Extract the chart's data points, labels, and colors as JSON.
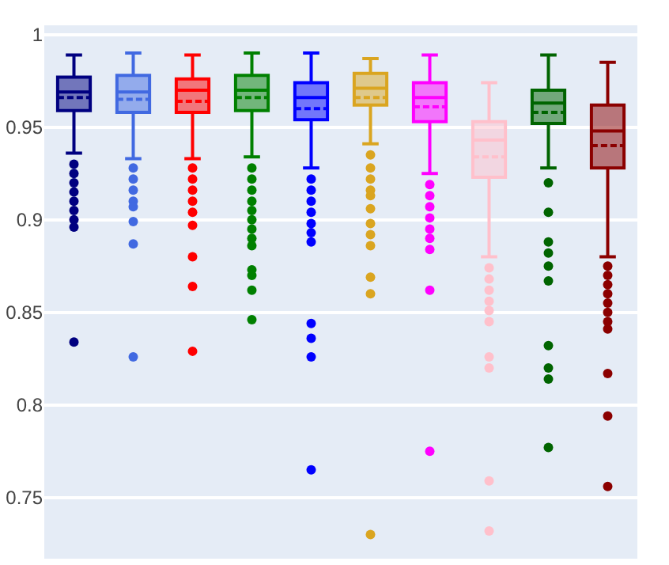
{
  "chart_data": {
    "type": "box",
    "categories": [
      null,
      null,
      null,
      null,
      null,
      null,
      null,
      null,
      null,
      null
    ],
    "colors": [
      "#000080",
      "#4169e1",
      "#ff0000",
      "#008000",
      "#0000ff",
      "#daa520",
      "#ff00ff",
      "#ffc0cb",
      "#006400",
      "#8b0000"
    ],
    "boxes": [
      {
        "low": 0.936,
        "q1": 0.959,
        "median": 0.969,
        "q3": 0.977,
        "high": 0.989,
        "mean": 0.966,
        "outliers": [
          0.93,
          0.925,
          0.92,
          0.915,
          0.91,
          0.905,
          0.9,
          0.896,
          0.834
        ]
      },
      {
        "low": 0.933,
        "q1": 0.958,
        "median": 0.969,
        "q3": 0.978,
        "high": 0.99,
        "mean": 0.965,
        "outliers": [
          0.928,
          0.922,
          0.916,
          0.91,
          0.907,
          0.899,
          0.887,
          0.826
        ]
      },
      {
        "low": 0.933,
        "q1": 0.958,
        "median": 0.97,
        "q3": 0.976,
        "high": 0.989,
        "mean": 0.964,
        "outliers": [
          0.928,
          0.922,
          0.916,
          0.91,
          0.904,
          0.897,
          0.88,
          0.864,
          0.829
        ]
      },
      {
        "low": 0.934,
        "q1": 0.959,
        "median": 0.97,
        "q3": 0.978,
        "high": 0.99,
        "mean": 0.966,
        "outliers": [
          0.928,
          0.922,
          0.916,
          0.91,
          0.905,
          0.9,
          0.895,
          0.89,
          0.886,
          0.873,
          0.87,
          0.862,
          0.846
        ]
      },
      {
        "low": 0.928,
        "q1": 0.954,
        "median": 0.966,
        "q3": 0.974,
        "high": 0.99,
        "mean": 0.96,
        "outliers": [
          0.922,
          0.916,
          0.91,
          0.904,
          0.898,
          0.893,
          0.888,
          0.844,
          0.836,
          0.826,
          0.765
        ]
      },
      {
        "low": 0.941,
        "q1": 0.962,
        "median": 0.971,
        "q3": 0.979,
        "high": 0.987,
        "mean": 0.966,
        "outliers": [
          0.935,
          0.928,
          0.922,
          0.916,
          0.913,
          0.906,
          0.898,
          0.892,
          0.886,
          0.869,
          0.86,
          0.73
        ]
      },
      {
        "low": 0.925,
        "q1": 0.953,
        "median": 0.966,
        "q3": 0.974,
        "high": 0.989,
        "mean": 0.961,
        "outliers": [
          0.919,
          0.913,
          0.907,
          0.901,
          0.895,
          0.89,
          0.884,
          0.862,
          0.775
        ]
      },
      {
        "low": 0.88,
        "q1": 0.923,
        "median": 0.943,
        "q3": 0.953,
        "high": 0.974,
        "mean": 0.934,
        "outliers": [
          0.874,
          0.868,
          0.862,
          0.856,
          0.851,
          0.845,
          0.826,
          0.82,
          0.759,
          0.732
        ]
      },
      {
        "low": 0.928,
        "q1": 0.952,
        "median": 0.963,
        "q3": 0.97,
        "high": 0.989,
        "mean": 0.958,
        "outliers": [
          0.92,
          0.904,
          0.888,
          0.882,
          0.875,
          0.867,
          0.832,
          0.82,
          0.814,
          0.777
        ]
      },
      {
        "low": 0.88,
        "q1": 0.928,
        "median": 0.948,
        "q3": 0.962,
        "high": 0.985,
        "mean": 0.94,
        "outliers": [
          0.875,
          0.87,
          0.865,
          0.86,
          0.855,
          0.85,
          0.845,
          0.841,
          0.817,
          0.794,
          0.756
        ]
      }
    ],
    "ylim": [
      0.717,
      1.005
    ],
    "yticks": [
      0.75,
      0.8,
      0.85,
      0.9,
      0.95,
      1
    ],
    "grid": "y",
    "tick_labels": "y"
  }
}
